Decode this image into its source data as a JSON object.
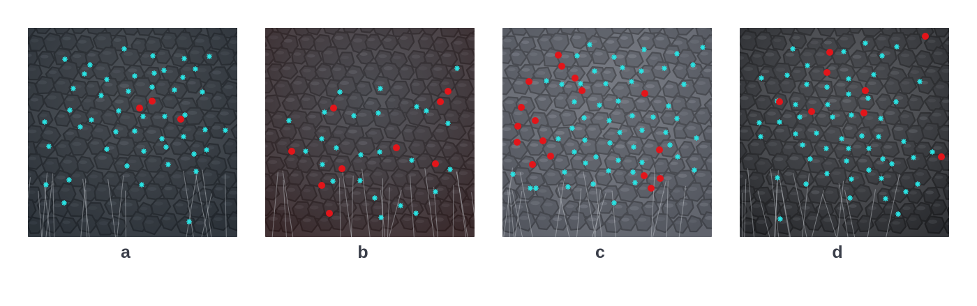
{
  "panels": [
    {
      "id": "a",
      "label": "a",
      "base_color": "#35383c",
      "cell_fill": "#26292d",
      "cell_stroke": "#0e0f11",
      "shine": "#7a818a",
      "tint": "#303a44",
      "cyan": [
        [
          93,
          85
        ],
        [
          129,
          93
        ],
        [
          178,
          70
        ],
        [
          219,
          80
        ],
        [
          264,
          84
        ],
        [
          300,
          81
        ],
        [
          105,
          127
        ],
        [
          121,
          106
        ],
        [
          153,
          114
        ],
        [
          193,
          109
        ],
        [
          221,
          105
        ],
        [
          235,
          101
        ],
        [
          262,
          111
        ],
        [
          280,
          99
        ],
        [
          145,
          137
        ],
        [
          184,
          131
        ],
        [
          218,
          125
        ],
        [
          250,
          129
        ],
        [
          290,
          132
        ],
        [
          100,
          158
        ],
        [
          131,
          172
        ],
        [
          170,
          159
        ],
        [
          205,
          167
        ],
        [
          236,
          167
        ],
        [
          265,
          165
        ],
        [
          64,
          175
        ],
        [
          115,
          182
        ],
        [
          166,
          189
        ],
        [
          193,
          188
        ],
        [
          232,
          199
        ],
        [
          263,
          196
        ],
        [
          294,
          186
        ],
        [
          323,
          187
        ],
        [
          70,
          210
        ],
        [
          153,
          214
        ],
        [
          206,
          217
        ],
        [
          238,
          211
        ],
        [
          278,
          221
        ],
        [
          296,
          215
        ],
        [
          182,
          238
        ],
        [
          241,
          236
        ],
        [
          281,
          246
        ],
        [
          99,
          258
        ],
        [
          203,
          265
        ],
        [
          66,
          265
        ],
        [
          92,
          291
        ],
        [
          271,
          318
        ]
      ],
      "red": [
        [
          218,
          145
        ],
        [
          200,
          155
        ],
        [
          259,
          171
        ]
      ]
    },
    {
      "id": "b",
      "label": "b",
      "base_color": "#3a3a3e",
      "cell_fill": "#2a2a2e",
      "cell_stroke": "#101012",
      "shine": "#8a8e98",
      "tint": "#4a2a2a",
      "cyan": [
        [
          655,
          98
        ],
        [
          545,
          127
        ],
        [
          487,
          132
        ],
        [
          597,
          153
        ],
        [
          542,
          162
        ],
        [
          507,
          166
        ],
        [
          465,
          161
        ],
        [
          414,
          173
        ],
        [
          611,
          159
        ],
        [
          642,
          177
        ],
        [
          461,
          199
        ],
        [
          482,
          212
        ],
        [
          517,
          222
        ],
        [
          544,
          218
        ],
        [
          438,
          217
        ],
        [
          590,
          230
        ],
        [
          645,
          243
        ],
        [
          462,
          236
        ],
        [
          477,
          260
        ],
        [
          516,
          259
        ],
        [
          537,
          284
        ],
        [
          574,
          295
        ],
        [
          596,
          306
        ],
        [
          546,
          312
        ],
        [
          624,
          275
        ]
      ],
      "red": [
        [
          642,
          131
        ],
        [
          631,
          146
        ],
        [
          478,
          155
        ],
        [
          568,
          212
        ],
        [
          418,
          217
        ],
        [
          490,
          242
        ],
        [
          624,
          235
        ],
        [
          461,
          266
        ],
        [
          472,
          306
        ]
      ]
    },
    {
      "id": "c",
      "label": "c",
      "base_color": "#55585f",
      "cell_fill": "#3a3d44",
      "cell_stroke": "#17181b",
      "shine": "#b8bcc6",
      "tint": "#6a6e78",
      "cyan": [
        [
          845,
          64
        ],
        [
          827,
          80
        ],
        [
          880,
          82
        ],
        [
          923,
          71
        ],
        [
          970,
          77
        ],
        [
          1007,
          68
        ],
        [
          852,
          102
        ],
        [
          892,
          97
        ],
        [
          919,
          102
        ],
        [
          952,
          98
        ],
        [
          993,
          93
        ],
        [
          783,
          116
        ],
        [
          805,
          121
        ],
        [
          832,
          120
        ],
        [
          868,
          120
        ],
        [
          905,
          117
        ],
        [
          980,
          121
        ],
        [
          823,
          146
        ],
        [
          859,
          151
        ],
        [
          886,
          145
        ],
        [
          958,
          152
        ],
        [
          837,
          169
        ],
        [
          873,
          173
        ],
        [
          906,
          166
        ],
        [
          936,
          168
        ],
        [
          970,
          170
        ],
        [
          820,
          184
        ],
        [
          888,
          190
        ],
        [
          920,
          187
        ],
        [
          954,
          190
        ],
        [
          998,
          198
        ],
        [
          800,
          199
        ],
        [
          838,
          201
        ],
        [
          874,
          205
        ],
        [
          908,
          211
        ],
        [
          960,
          208
        ],
        [
          823,
          218
        ],
        [
          854,
          225
        ],
        [
          886,
          230
        ],
        [
          920,
          233
        ],
        [
          971,
          225
        ],
        [
          809,
          247
        ],
        [
          839,
          234
        ],
        [
          872,
          245
        ],
        [
          907,
          247
        ],
        [
          995,
          244
        ],
        [
          735,
          250
        ],
        [
          760,
          270
        ],
        [
          814,
          268
        ],
        [
          850,
          264
        ],
        [
          880,
          291
        ],
        [
          768,
          270
        ],
        [
          910,
          262
        ]
      ],
      "red": [
        [
          800,
          79
        ],
        [
          805,
          95
        ],
        [
          824,
          112
        ],
        [
          758,
          117
        ],
        [
          834,
          130
        ],
        [
          924,
          134
        ],
        [
          747,
          154
        ],
        [
          767,
          173
        ],
        [
          742,
          181
        ],
        [
          778,
          202
        ],
        [
          741,
          204
        ],
        [
          789,
          224
        ],
        [
          945,
          215
        ],
        [
          763,
          236
        ],
        [
          923,
          252
        ],
        [
          946,
          256
        ],
        [
          933,
          270
        ]
      ]
    },
    {
      "id": "d",
      "label": "d",
      "base_color": "#3b3c3f",
      "cell_fill": "#232427",
      "cell_stroke": "#0b0b0c",
      "shine": "#9a9ea6",
      "tint": "#2e3034",
      "cyan": [
        [
          1136,
          70
        ],
        [
          1157,
          94
        ],
        [
          1209,
          74
        ],
        [
          1240,
          62
        ],
        [
          1264,
          80
        ],
        [
          1285,
          67
        ],
        [
          1128,
          108
        ],
        [
          1091,
          112
        ],
        [
          1156,
          121
        ],
        [
          1185,
          125
        ],
        [
          1216,
          113
        ],
        [
          1252,
          107
        ],
        [
          1318,
          117
        ],
        [
          1114,
          145
        ],
        [
          1140,
          150
        ],
        [
          1186,
          150
        ],
        [
          1216,
          135
        ],
        [
          1244,
          141
        ],
        [
          1284,
          146
        ],
        [
          1088,
          176
        ],
        [
          1117,
          175
        ],
        [
          1146,
          168
        ],
        [
          1193,
          168
        ],
        [
          1220,
          165
        ],
        [
          1262,
          170
        ],
        [
          1090,
          196
        ],
        [
          1140,
          192
        ],
        [
          1170,
          191
        ],
        [
          1206,
          199
        ],
        [
          1235,
          195
        ],
        [
          1259,
          196
        ],
        [
          1295,
          203
        ],
        [
          1150,
          208
        ],
        [
          1184,
          213
        ],
        [
          1216,
          213
        ],
        [
          1245,
          213
        ],
        [
          1265,
          228
        ],
        [
          1309,
          226
        ],
        [
          1336,
          218
        ],
        [
          1161,
          228
        ],
        [
          1213,
          231
        ],
        [
          1245,
          244
        ],
        [
          1278,
          235
        ],
        [
          1114,
          255
        ],
        [
          1155,
          264
        ],
        [
          1185,
          249
        ],
        [
          1220,
          257
        ],
        [
          1263,
          256
        ],
        [
          1298,
          275
        ],
        [
          1218,
          284
        ],
        [
          1269,
          285
        ],
        [
          1315,
          264
        ],
        [
          1118,
          314
        ],
        [
          1287,
          307
        ]
      ],
      "red": [
        [
          1326,
          52
        ],
        [
          1189,
          75
        ],
        [
          1185,
          104
        ],
        [
          1240,
          130
        ],
        [
          1117,
          146
        ],
        [
          1163,
          160
        ],
        [
          1238,
          162
        ],
        [
          1349,
          225
        ]
      ]
    }
  ]
}
